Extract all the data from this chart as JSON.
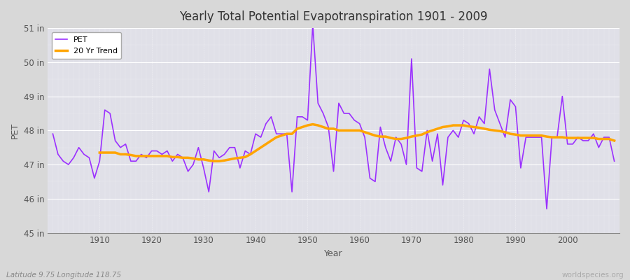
{
  "title": "Yearly Total Potential Evapotranspiration 1901 - 2009",
  "xlabel": "Year",
  "ylabel": "PET",
  "footnote_left": "Latitude 9.75 Longitude 118.75",
  "footnote_right": "worldspecies.org",
  "pet_color": "#9B30FF",
  "trend_color": "#FFA500",
  "bg_color": "#D8D8D8",
  "plot_bg_color": "#E0E0E8",
  "ylim": [
    45,
    51
  ],
  "yticks": [
    45,
    46,
    47,
    48,
    49,
    50,
    51
  ],
  "ytick_labels": [
    "45 in",
    "46 in",
    "47 in",
    "48 in",
    "49 in",
    "50 in",
    "51 in"
  ],
  "years": [
    1901,
    1902,
    1903,
    1904,
    1905,
    1906,
    1907,
    1908,
    1909,
    1910,
    1911,
    1912,
    1913,
    1914,
    1915,
    1916,
    1917,
    1918,
    1919,
    1920,
    1921,
    1922,
    1923,
    1924,
    1925,
    1926,
    1927,
    1928,
    1929,
    1930,
    1931,
    1932,
    1933,
    1934,
    1935,
    1936,
    1937,
    1938,
    1939,
    1940,
    1941,
    1942,
    1943,
    1944,
    1945,
    1946,
    1947,
    1948,
    1949,
    1950,
    1951,
    1952,
    1953,
    1954,
    1955,
    1956,
    1957,
    1958,
    1959,
    1960,
    1961,
    1962,
    1963,
    1964,
    1965,
    1966,
    1967,
    1968,
    1969,
    1970,
    1971,
    1972,
    1973,
    1974,
    1975,
    1976,
    1977,
    1978,
    1979,
    1980,
    1981,
    1982,
    1983,
    1984,
    1985,
    1986,
    1987,
    1988,
    1989,
    1990,
    1991,
    1992,
    1993,
    1994,
    1995,
    1996,
    1997,
    1998,
    1999,
    2000,
    2001,
    2002,
    2003,
    2004,
    2005,
    2006,
    2007,
    2008,
    2009
  ],
  "pet": [
    47.9,
    47.3,
    47.1,
    47.0,
    47.2,
    47.5,
    47.3,
    47.2,
    46.6,
    47.1,
    48.6,
    48.5,
    47.7,
    47.5,
    47.6,
    47.1,
    47.1,
    47.3,
    47.2,
    47.4,
    47.4,
    47.3,
    47.4,
    47.1,
    47.3,
    47.2,
    46.8,
    47.0,
    47.5,
    46.9,
    46.2,
    47.4,
    47.2,
    47.3,
    47.5,
    47.5,
    46.9,
    47.4,
    47.3,
    47.9,
    47.8,
    48.2,
    48.4,
    47.9,
    47.9,
    47.9,
    46.2,
    48.4,
    48.4,
    48.3,
    51.1,
    48.8,
    48.5,
    48.1,
    46.8,
    48.8,
    48.5,
    48.5,
    48.3,
    48.2,
    47.8,
    46.6,
    46.5,
    48.1,
    47.5,
    47.1,
    47.8,
    47.6,
    47.0,
    50.1,
    46.9,
    46.8,
    48.0,
    47.1,
    47.9,
    46.4,
    47.8,
    48.0,
    47.8,
    48.3,
    48.2,
    47.9,
    48.4,
    48.2,
    49.8,
    48.6,
    48.2,
    47.8,
    48.9,
    48.7,
    46.9,
    47.8,
    47.8,
    47.8,
    47.8,
    45.7,
    47.8,
    47.8,
    49.0,
    47.6,
    47.6,
    47.8,
    47.7,
    47.7,
    47.9,
    47.5,
    47.8,
    47.8,
    47.1
  ],
  "trend": [
    null,
    null,
    null,
    null,
    null,
    null,
    null,
    null,
    null,
    47.35,
    47.35,
    47.35,
    47.35,
    47.3,
    47.3,
    47.28,
    47.25,
    47.25,
    47.25,
    47.25,
    47.25,
    47.25,
    47.25,
    47.22,
    47.22,
    47.2,
    47.2,
    47.18,
    47.15,
    47.15,
    47.12,
    47.1,
    47.1,
    47.12,
    47.15,
    47.18,
    47.2,
    47.22,
    47.3,
    47.4,
    47.5,
    47.6,
    47.7,
    47.8,
    47.85,
    47.9,
    47.9,
    48.05,
    48.1,
    48.15,
    48.18,
    48.15,
    48.1,
    48.05,
    48.05,
    48.0,
    48.0,
    48.0,
    48.0,
    48.0,
    47.95,
    47.9,
    47.85,
    47.82,
    47.82,
    47.78,
    47.75,
    47.75,
    47.78,
    47.82,
    47.85,
    47.88,
    47.95,
    48.0,
    48.05,
    48.1,
    48.12,
    48.15,
    48.15,
    48.15,
    48.12,
    48.1,
    48.08,
    48.05,
    48.02,
    48.0,
    47.98,
    47.95,
    47.9,
    47.88,
    47.85,
    47.85,
    47.85,
    47.85,
    47.85,
    47.82,
    47.8,
    47.8,
    47.8,
    47.78,
    47.78,
    47.78,
    47.78,
    47.78,
    47.78,
    47.75,
    47.75,
    47.75,
    47.7
  ]
}
